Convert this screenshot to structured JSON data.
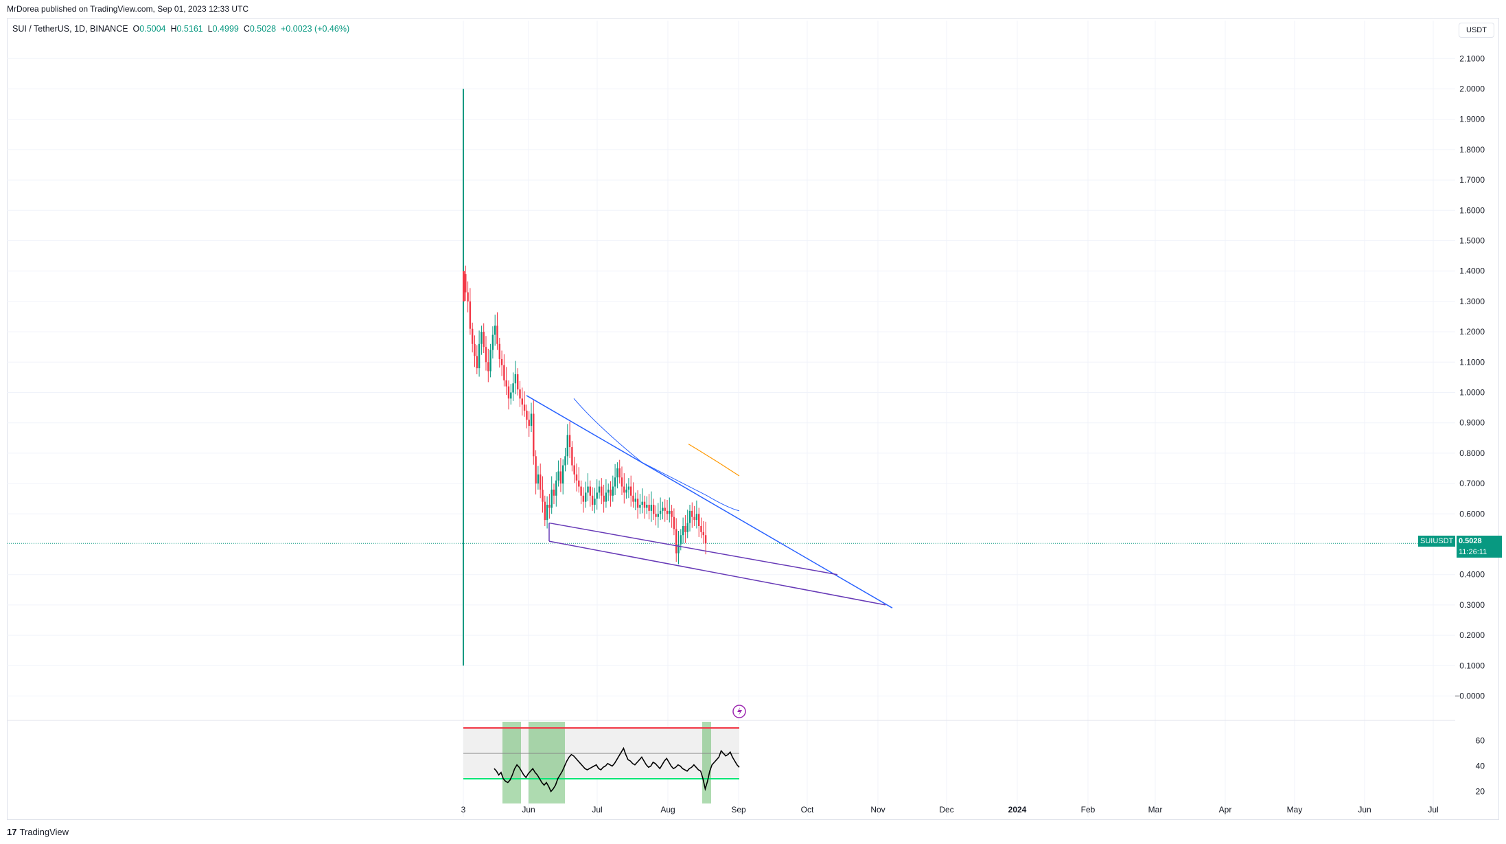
{
  "header": {
    "publisher": "MrDorea published on TradingView.com, Sep 01, 2023 12:33 UTC"
  },
  "legend": {
    "symbol": "SUI / TetherUS, 1D, BINANCE",
    "o_label": "O",
    "o_value": "0.5004",
    "h_label": "H",
    "h_value": "0.5161",
    "l_label": "L",
    "l_value": "0.4999",
    "c_label": "C",
    "c_value": "0.5028",
    "change": "+0.0023 (+0.46%)"
  },
  "currency": "USDT",
  "price_tag": {
    "symbol": "SUIUSDT",
    "value": "0.5028",
    "countdown": "11:26:11"
  },
  "brand": "TradingView",
  "colors": {
    "up": "#089981",
    "down": "#f23645",
    "trend_blue": "#2962ff",
    "trend_purple": "#673ab7",
    "ma_orange": "#ff9800",
    "rsi_line": "#000000",
    "rsi_upper": "#f23645",
    "rsi_lower": "#00e676",
    "rsi_highlight": "#4caf50"
  },
  "chart_data": [
    {
      "type": "candlestick",
      "title": "SUI / TetherUS, 1D, BINANCE",
      "y_ticks": [
        "2.1000",
        "2.0000",
        "1.9000",
        "1.8000",
        "1.7000",
        "1.6000",
        "1.5000",
        "1.4000",
        "1.3000",
        "1.2000",
        "1.1000",
        "1.0000",
        "0.9000",
        "0.8000",
        "0.7000",
        "0.6000",
        "0.4000",
        "0.3000",
        "0.2000",
        "0.1000",
        "−0.0000"
      ],
      "ylim": [
        -0.05,
        2.2
      ],
      "x_ticks": [
        "3",
        "Jun",
        "Jul",
        "Aug",
        "Sep",
        "Oct",
        "Nov",
        "Dec",
        "2024",
        "Feb",
        "Mar",
        "Apr",
        "May",
        "Jun",
        "Jul"
      ],
      "last_price": 0.5028,
      "listing_wick": {
        "high": 2.0,
        "low": 0.1
      },
      "close_series": [
        1.39,
        1.33,
        1.3,
        1.21,
        1.16,
        1.12,
        1.08,
        1.16,
        1.2,
        1.15,
        1.1,
        1.07,
        1.14,
        1.19,
        1.22,
        1.16,
        1.11,
        1.09,
        1.04,
        1.02,
        0.98,
        1.0,
        1.03,
        1.06,
        1.01,
        0.98,
        0.96,
        0.94,
        0.91,
        0.89,
        0.93,
        0.79,
        0.7,
        0.73,
        0.68,
        0.64,
        0.58,
        0.63,
        0.62,
        0.68,
        0.66,
        0.71,
        0.74,
        0.7,
        0.76,
        0.79,
        0.86,
        0.82,
        0.76,
        0.73,
        0.71,
        0.69,
        0.66,
        0.64,
        0.67,
        0.69,
        0.66,
        0.63,
        0.65,
        0.67,
        0.69,
        0.66,
        0.64,
        0.67,
        0.68,
        0.66,
        0.69,
        0.72,
        0.75,
        0.72,
        0.69,
        0.67,
        0.68,
        0.69,
        0.66,
        0.64,
        0.65,
        0.62,
        0.63,
        0.64,
        0.62,
        0.63,
        0.61,
        0.63,
        0.6,
        0.59,
        0.6,
        0.61,
        0.62,
        0.61,
        0.6,
        0.61,
        0.59,
        0.55,
        0.47,
        0.5,
        0.53,
        0.56,
        0.54,
        0.57,
        0.61,
        0.59,
        0.58,
        0.6,
        0.56,
        0.54,
        0.53,
        0.5028
      ],
      "trendlines": [
        {
          "name": "",
          "x": [
            "May 28",
            "Nov 07"
          ],
          "y": [
            0.99,
            0.29
          ]
        },
        {
          "name": "",
          "x": [
            "Jun 10",
            "Nov 07"
          ],
          "y": [
            0.51,
            0.3
          ]
        },
        {
          "name": "",
          "x": [
            "Jun 10",
            "Oct 19"
          ],
          "y": [
            0.57,
            0.4
          ]
        }
      ]
    },
    {
      "type": "line",
      "title": "",
      "y_ticks": [
        "60",
        "40",
        "20"
      ],
      "ylim": [
        15,
        73
      ],
      "bands": {
        "upper": 70,
        "middle": 50,
        "lower": 30
      },
      "values": [
        38,
        36,
        33,
        35,
        30,
        28,
        27,
        29,
        33,
        38,
        41,
        39,
        36,
        33,
        31,
        34,
        36,
        38,
        35,
        33,
        30,
        27,
        25,
        27,
        24,
        20,
        22,
        25,
        30,
        33,
        36,
        40,
        44,
        47,
        49,
        48,
        46,
        44,
        42,
        40,
        38,
        37,
        38,
        39,
        40,
        41,
        38,
        37,
        39,
        40,
        42,
        41,
        40,
        42,
        45,
        48,
        51,
        54,
        49,
        45,
        44,
        42,
        41,
        43,
        45,
        47,
        44,
        41,
        39,
        40,
        43,
        42,
        40,
        38,
        41,
        44,
        46,
        43,
        40,
        38,
        39,
        41,
        40,
        38,
        37,
        36,
        38,
        39,
        41,
        39,
        37,
        36,
        30,
        22,
        28,
        36,
        41,
        43,
        45,
        47,
        52,
        50,
        48,
        49,
        51,
        47,
        44,
        41,
        39
      ]
    }
  ]
}
